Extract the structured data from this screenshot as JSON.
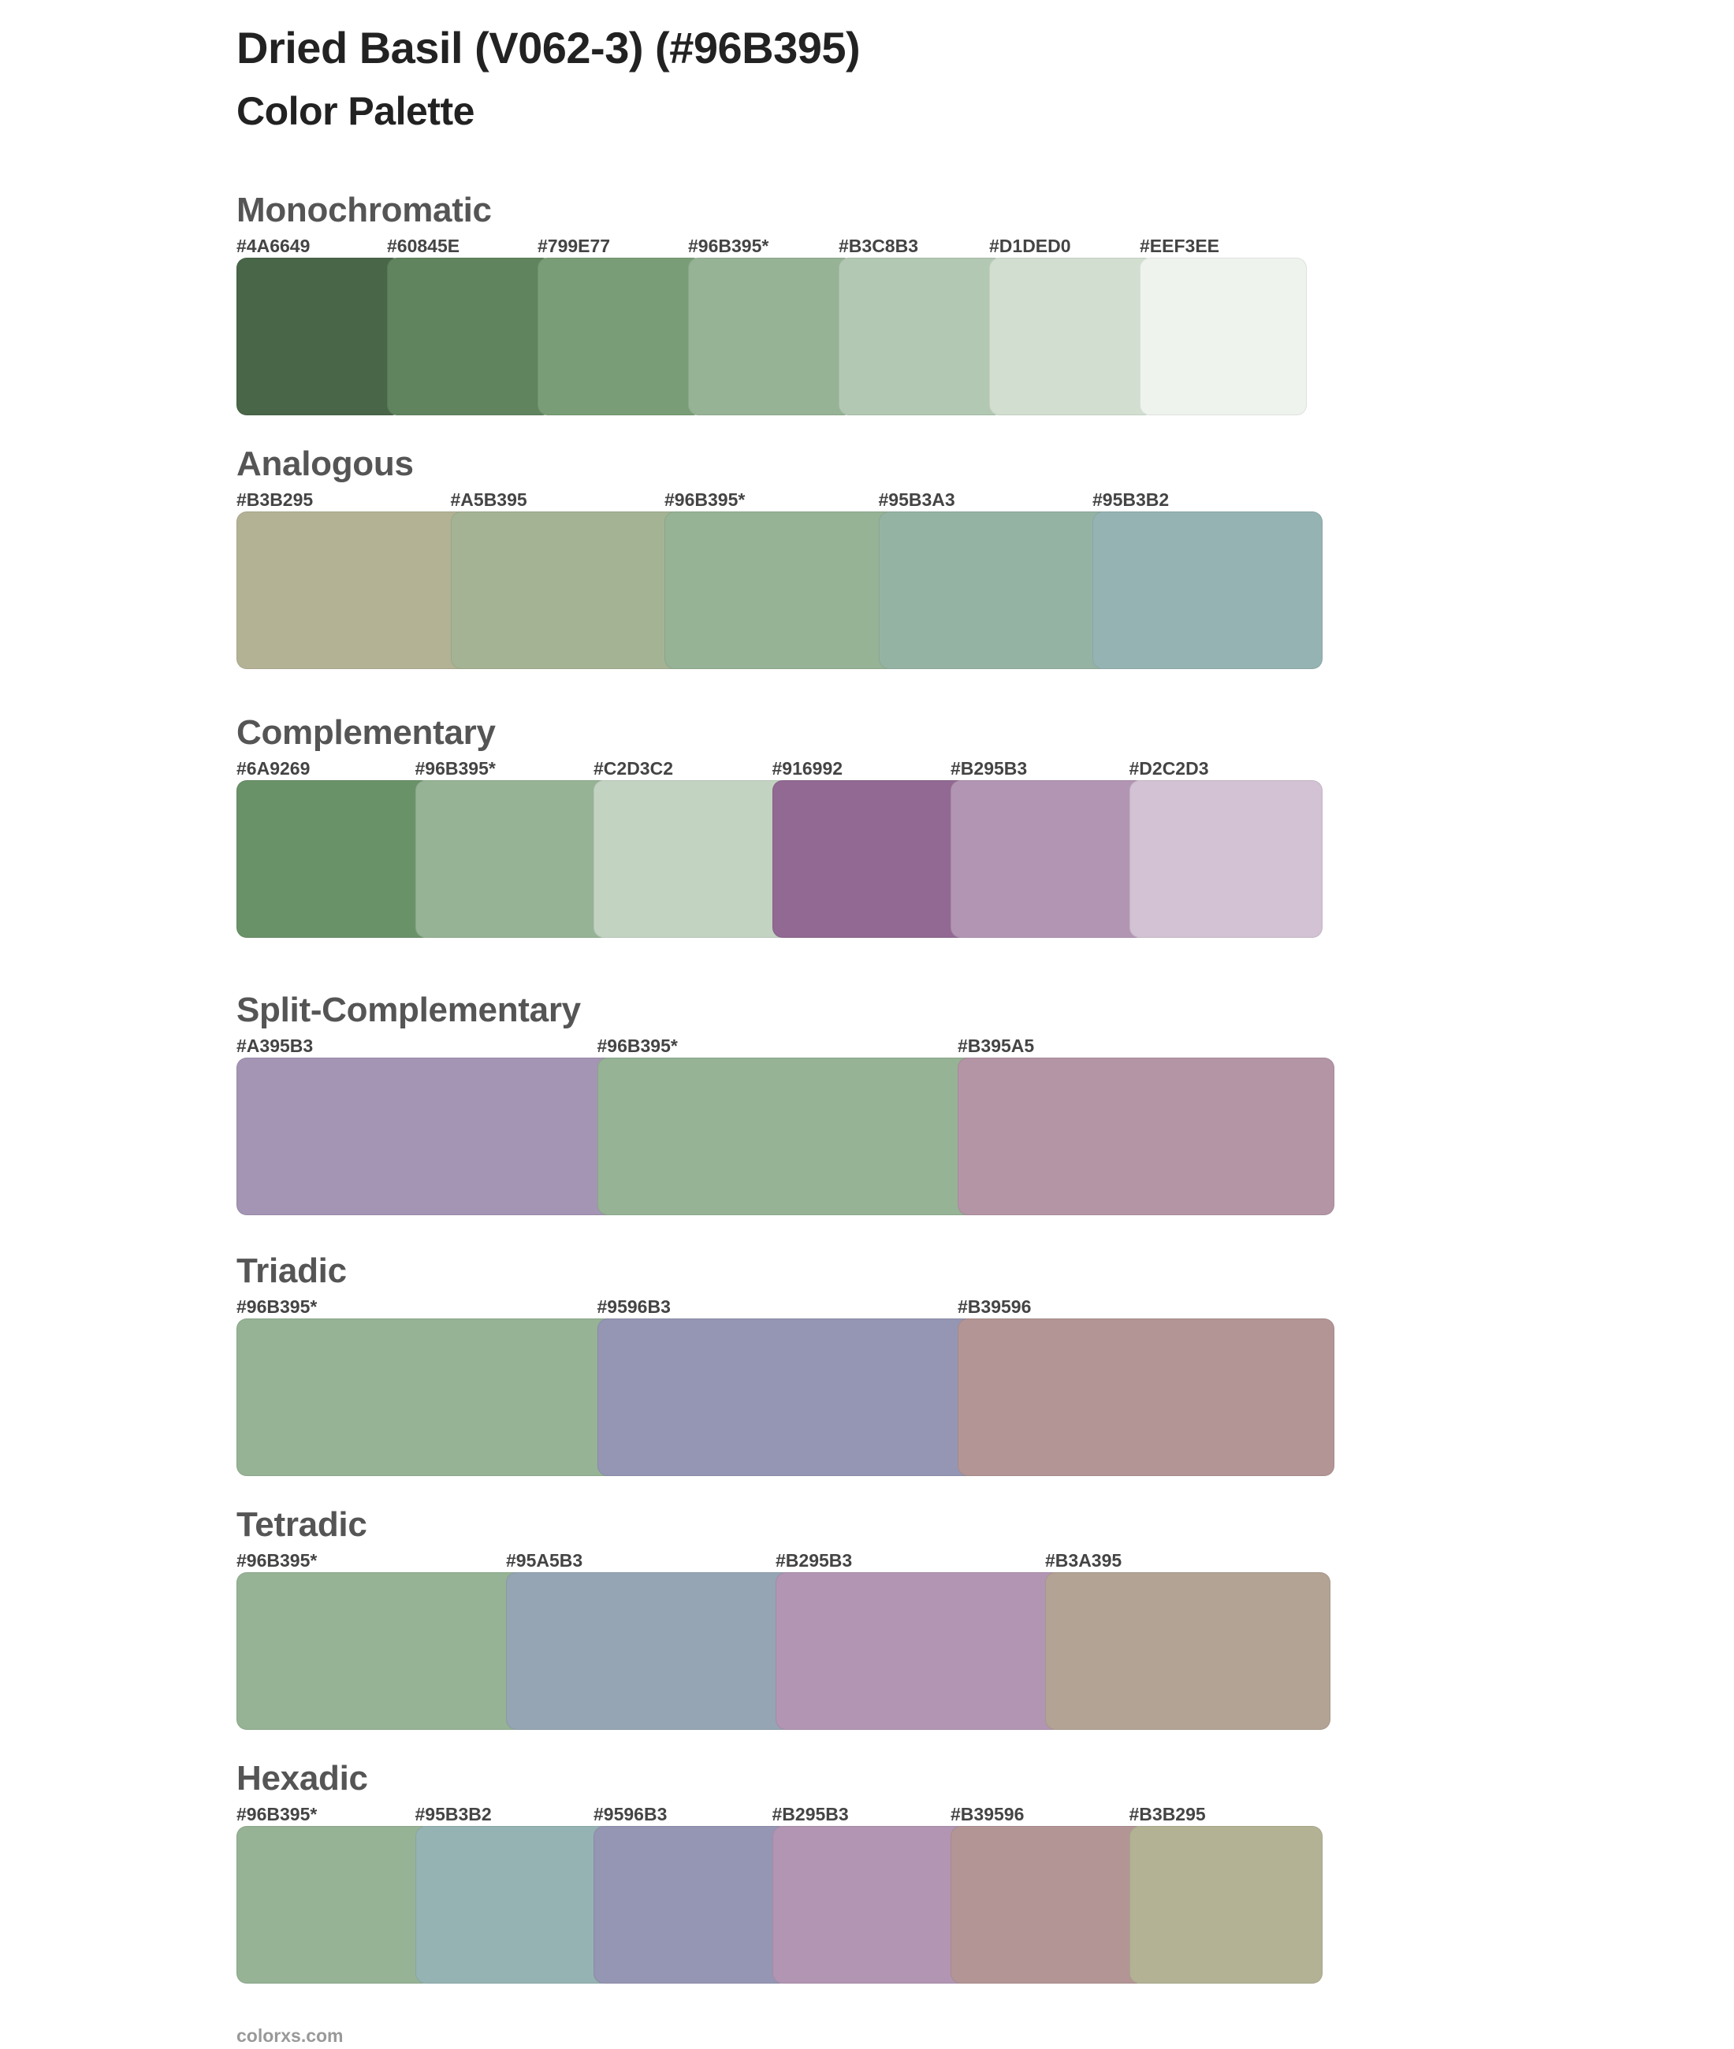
{
  "header": {
    "title": "Dried Basil (V062-3) (#96B395)",
    "subtitle": "Color Palette"
  },
  "base_color": "#96B395",
  "sections": [
    {
      "name": "Monochromatic",
      "colors": [
        {
          "label": "#4A6649",
          "hex": "#4A6649"
        },
        {
          "label": "#60845E",
          "hex": "#60845E"
        },
        {
          "label": "#799E77",
          "hex": "#799E77"
        },
        {
          "label": "#96B395*",
          "hex": "#96B395"
        },
        {
          "label": "#B3C8B3",
          "hex": "#B3C8B3"
        },
        {
          "label": "#D1DED0",
          "hex": "#D1DED0"
        },
        {
          "label": "#EEF3EE",
          "hex": "#EEF3EE"
        }
      ]
    },
    {
      "name": "Analogous",
      "colors": [
        {
          "label": "#B3B295",
          "hex": "#B3B295"
        },
        {
          "label": "#A5B395",
          "hex": "#A5B395"
        },
        {
          "label": "#96B395*",
          "hex": "#96B395"
        },
        {
          "label": "#95B3A3",
          "hex": "#95B3A3"
        },
        {
          "label": "#95B3B2",
          "hex": "#95B3B2"
        }
      ]
    },
    {
      "name": "Complementary",
      "colors": [
        {
          "label": "#6A9269",
          "hex": "#6A9269"
        },
        {
          "label": "#96B395*",
          "hex": "#96B395"
        },
        {
          "label": "#C2D3C2",
          "hex": "#C2D3C2"
        },
        {
          "label": "#916992",
          "hex": "#916992"
        },
        {
          "label": "#B295B3",
          "hex": "#B295B3"
        },
        {
          "label": "#D2C2D3",
          "hex": "#D2C2D3"
        }
      ]
    },
    {
      "name": "Split-Complementary",
      "colors": [
        {
          "label": "#A395B3",
          "hex": "#A395B3"
        },
        {
          "label": "#96B395*",
          "hex": "#96B395"
        },
        {
          "label": "#B395A5",
          "hex": "#B395A5"
        }
      ]
    },
    {
      "name": "Triadic",
      "colors": [
        {
          "label": "#96B395*",
          "hex": "#96B395"
        },
        {
          "label": "#9596B3",
          "hex": "#9596B3"
        },
        {
          "label": "#B39596",
          "hex": "#B39596"
        }
      ]
    },
    {
      "name": "Tetradic",
      "colors": [
        {
          "label": "#96B395*",
          "hex": "#96B395"
        },
        {
          "label": "#95A5B3",
          "hex": "#95A5B3"
        },
        {
          "label": "#B295B3",
          "hex": "#B295B3"
        },
        {
          "label": "#B3A395",
          "hex": "#B3A395"
        }
      ]
    },
    {
      "name": "Hexadic",
      "colors": [
        {
          "label": "#96B395*",
          "hex": "#96B395"
        },
        {
          "label": "#95B3B2",
          "hex": "#95B3B2"
        },
        {
          "label": "#9596B3",
          "hex": "#9596B3"
        },
        {
          "label": "#B295B3",
          "hex": "#B295B3"
        },
        {
          "label": "#B39596",
          "hex": "#B39596"
        },
        {
          "label": "#B3B295",
          "hex": "#B3B295"
        }
      ]
    }
  ],
  "footer": {
    "text": "colorxs.com"
  }
}
